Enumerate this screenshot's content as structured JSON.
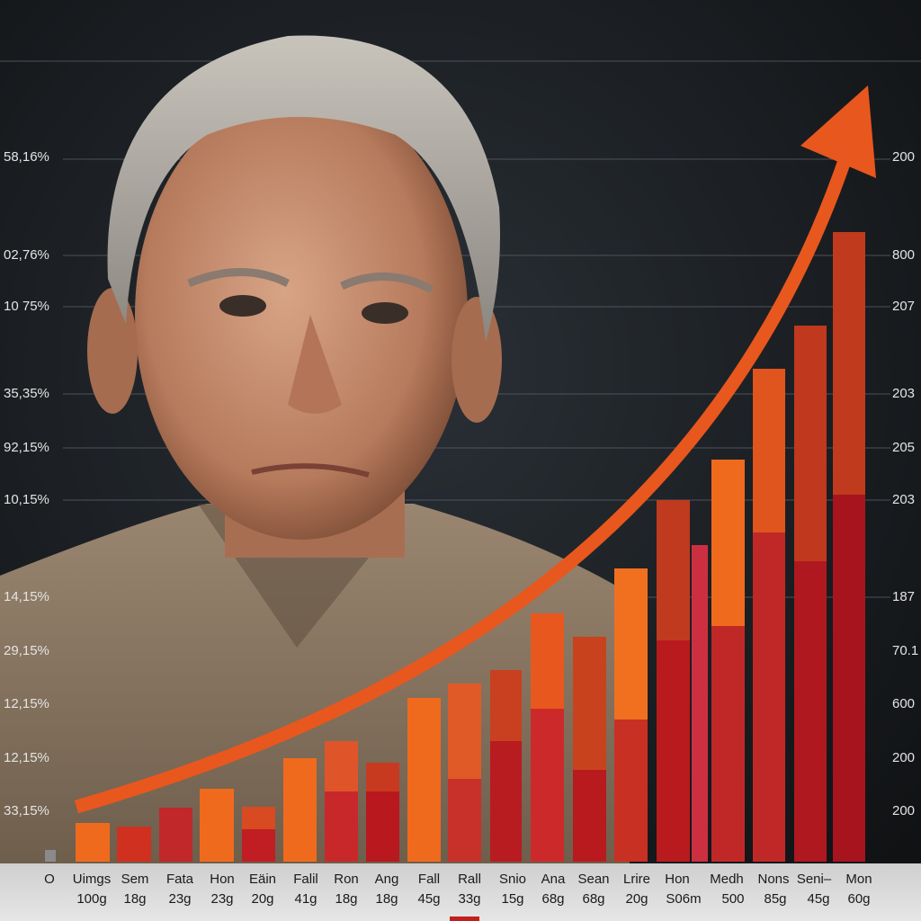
{
  "left_labels": [
    "58,16%",
    "02,76%",
    "10 75%",
    "35,35%",
    "92,15%",
    "10,15%",
    "14,15%",
    "29,15%",
    "12,15%",
    "12,15%",
    "33,15%"
  ],
  "right_labels": [
    "200",
    "800",
    "207",
    "203",
    "205",
    "203",
    "187",
    "70.1",
    "600",
    "200",
    "200"
  ],
  "categories": [
    "O",
    "Uimgs",
    "Sem",
    "Fata",
    "Hon",
    "Eäin",
    "Falil",
    "Ron",
    "Ang",
    "Fall",
    "Rall",
    "Snio",
    "Ana",
    "Sean",
    "Lrire",
    "Hon",
    "Medh",
    "Nons",
    "Seni–",
    "Mon"
  ],
  "sublabels": [
    "100g",
    "18g",
    "23g",
    "23g",
    "20g",
    "41g",
    "18g",
    "18g",
    "45g",
    "33g",
    "15g",
    "68g",
    "68g",
    "20g",
    "S06m",
    "500",
    "85g",
    "45g",
    "60g"
  ]
}
